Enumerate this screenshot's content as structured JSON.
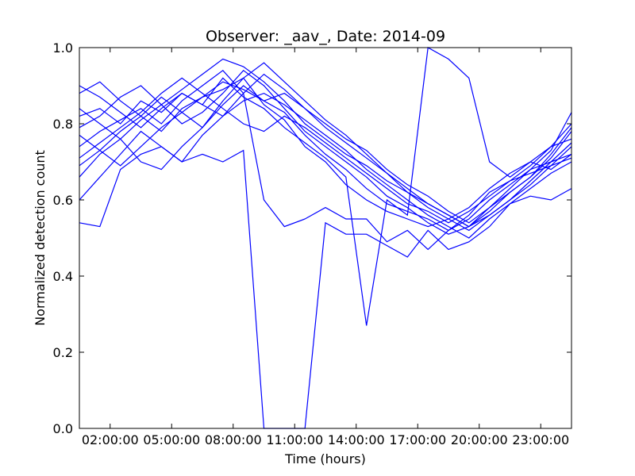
{
  "chart_data": {
    "type": "line",
    "title": "Observer: _aav_, Date: 2014-09",
    "xlabel": "Time (hours)",
    "ylabel": "Normalized detection count",
    "xlim": [
      0.5,
      24.5
    ],
    "ylim": [
      0.0,
      1.0
    ],
    "x_tick_values": [
      2,
      5,
      8,
      11,
      14,
      17,
      20,
      23
    ],
    "x_tick_labels": [
      "02:00:00",
      "05:00:00",
      "08:00:00",
      "11:00:00",
      "14:00:00",
      "17:00:00",
      "20:00:00",
      "23:00:00"
    ],
    "y_tick_values": [
      0.0,
      0.2,
      0.4,
      0.6,
      0.8,
      1.0
    ],
    "y_tick_labels": [
      "0.0",
      "0.2",
      "0.4",
      "0.6",
      "0.8",
      "1.0"
    ],
    "grid": false,
    "legend": "none",
    "line_color": "#0000ff",
    "x": [
      0.5,
      1.5,
      2.5,
      3.5,
      4.5,
      5.5,
      6.5,
      7.5,
      8.5,
      9.5,
      10.5,
      11.5,
      12.5,
      13.5,
      14.5,
      15.5,
      16.5,
      17.5,
      18.5,
      19.5,
      20.5,
      21.5,
      22.5,
      23.5,
      24.5
    ],
    "series": [
      {
        "values": [
          0.54,
          0.53,
          0.68,
          0.72,
          0.74,
          0.7,
          0.72,
          0.7,
          0.73,
          0.0,
          0.0,
          0.0,
          0.54,
          0.51,
          0.51,
          0.48,
          0.45,
          0.52,
          0.47,
          0.49,
          0.53,
          0.59,
          0.61,
          0.6,
          0.63
        ]
      },
      {
        "values": [
          0.82,
          0.84,
          0.8,
          0.86,
          0.83,
          0.88,
          0.85,
          0.92,
          0.87,
          0.84,
          0.79,
          0.75,
          0.71,
          0.66,
          0.27,
          0.6,
          0.56,
          1.0,
          0.97,
          0.92,
          0.7,
          0.66,
          0.7,
          0.68,
          0.72
        ]
      },
      {
        "values": [
          0.74,
          0.78,
          0.81,
          0.84,
          0.8,
          0.86,
          0.9,
          0.94,
          0.88,
          0.6,
          0.53,
          0.55,
          0.58,
          0.55,
          0.55,
          0.49,
          0.52,
          0.47,
          0.52,
          0.56,
          0.62,
          0.65,
          0.67,
          0.69,
          0.71
        ]
      },
      {
        "values": [
          0.88,
          0.91,
          0.86,
          0.82,
          0.78,
          0.84,
          0.87,
          0.89,
          0.92,
          0.85,
          0.81,
          0.74,
          0.7,
          0.64,
          0.6,
          0.57,
          0.55,
          0.53,
          0.55,
          0.58,
          0.63,
          0.67,
          0.7,
          0.74,
          0.76
        ]
      },
      {
        "values": [
          0.66,
          0.72,
          0.76,
          0.7,
          0.68,
          0.74,
          0.79,
          0.85,
          0.9,
          0.86,
          0.83,
          0.77,
          0.72,
          0.68,
          0.63,
          0.59,
          0.57,
          0.55,
          0.52,
          0.55,
          0.6,
          0.64,
          0.68,
          0.7,
          0.72
        ]
      },
      {
        "values": [
          0.79,
          0.82,
          0.87,
          0.9,
          0.85,
          0.8,
          0.83,
          0.88,
          0.94,
          0.9,
          0.84,
          0.78,
          0.74,
          0.7,
          0.66,
          0.61,
          0.58,
          0.54,
          0.51,
          0.53,
          0.58,
          0.62,
          0.66,
          0.71,
          0.78
        ]
      },
      {
        "values": [
          0.71,
          0.75,
          0.79,
          0.83,
          0.88,
          0.92,
          0.88,
          0.84,
          0.8,
          0.78,
          0.82,
          0.79,
          0.75,
          0.71,
          0.67,
          0.63,
          0.59,
          0.57,
          0.54,
          0.57,
          0.61,
          0.65,
          0.69,
          0.74,
          0.8
        ]
      },
      {
        "values": [
          0.6,
          0.66,
          0.72,
          0.78,
          0.74,
          0.7,
          0.77,
          0.82,
          0.86,
          0.88,
          0.85,
          0.81,
          0.77,
          0.73,
          0.68,
          0.64,
          0.6,
          0.56,
          0.53,
          0.5,
          0.55,
          0.59,
          0.63,
          0.67,
          0.7
        ]
      },
      {
        "values": [
          0.84,
          0.8,
          0.76,
          0.81,
          0.85,
          0.89,
          0.93,
          0.97,
          0.95,
          0.91,
          0.86,
          0.8,
          0.76,
          0.72,
          0.69,
          0.65,
          0.62,
          0.58,
          0.55,
          0.52,
          0.56,
          0.6,
          0.65,
          0.7,
          0.75
        ]
      },
      {
        "values": [
          0.77,
          0.73,
          0.69,
          0.74,
          0.79,
          0.83,
          0.87,
          0.91,
          0.89,
          0.86,
          0.88,
          0.84,
          0.79,
          0.75,
          0.71,
          0.67,
          0.62,
          0.59,
          0.56,
          0.53,
          0.57,
          0.62,
          0.66,
          0.72,
          0.79
        ]
      },
      {
        "values": [
          0.9,
          0.87,
          0.83,
          0.79,
          0.84,
          0.88,
          0.85,
          0.82,
          0.88,
          0.93,
          0.89,
          0.84,
          0.8,
          0.76,
          0.73,
          0.68,
          0.64,
          0.61,
          0.57,
          0.54,
          0.58,
          0.63,
          0.68,
          0.73,
          0.83
        ]
      },
      {
        "values": [
          0.69,
          0.73,
          0.78,
          0.82,
          0.87,
          0.83,
          0.79,
          0.86,
          0.92,
          0.96,
          0.91,
          0.86,
          0.81,
          0.77,
          0.72,
          0.67,
          0.63,
          0.59,
          0.56,
          0.53,
          0.56,
          0.6,
          0.64,
          0.69,
          0.74
        ]
      }
    ]
  }
}
